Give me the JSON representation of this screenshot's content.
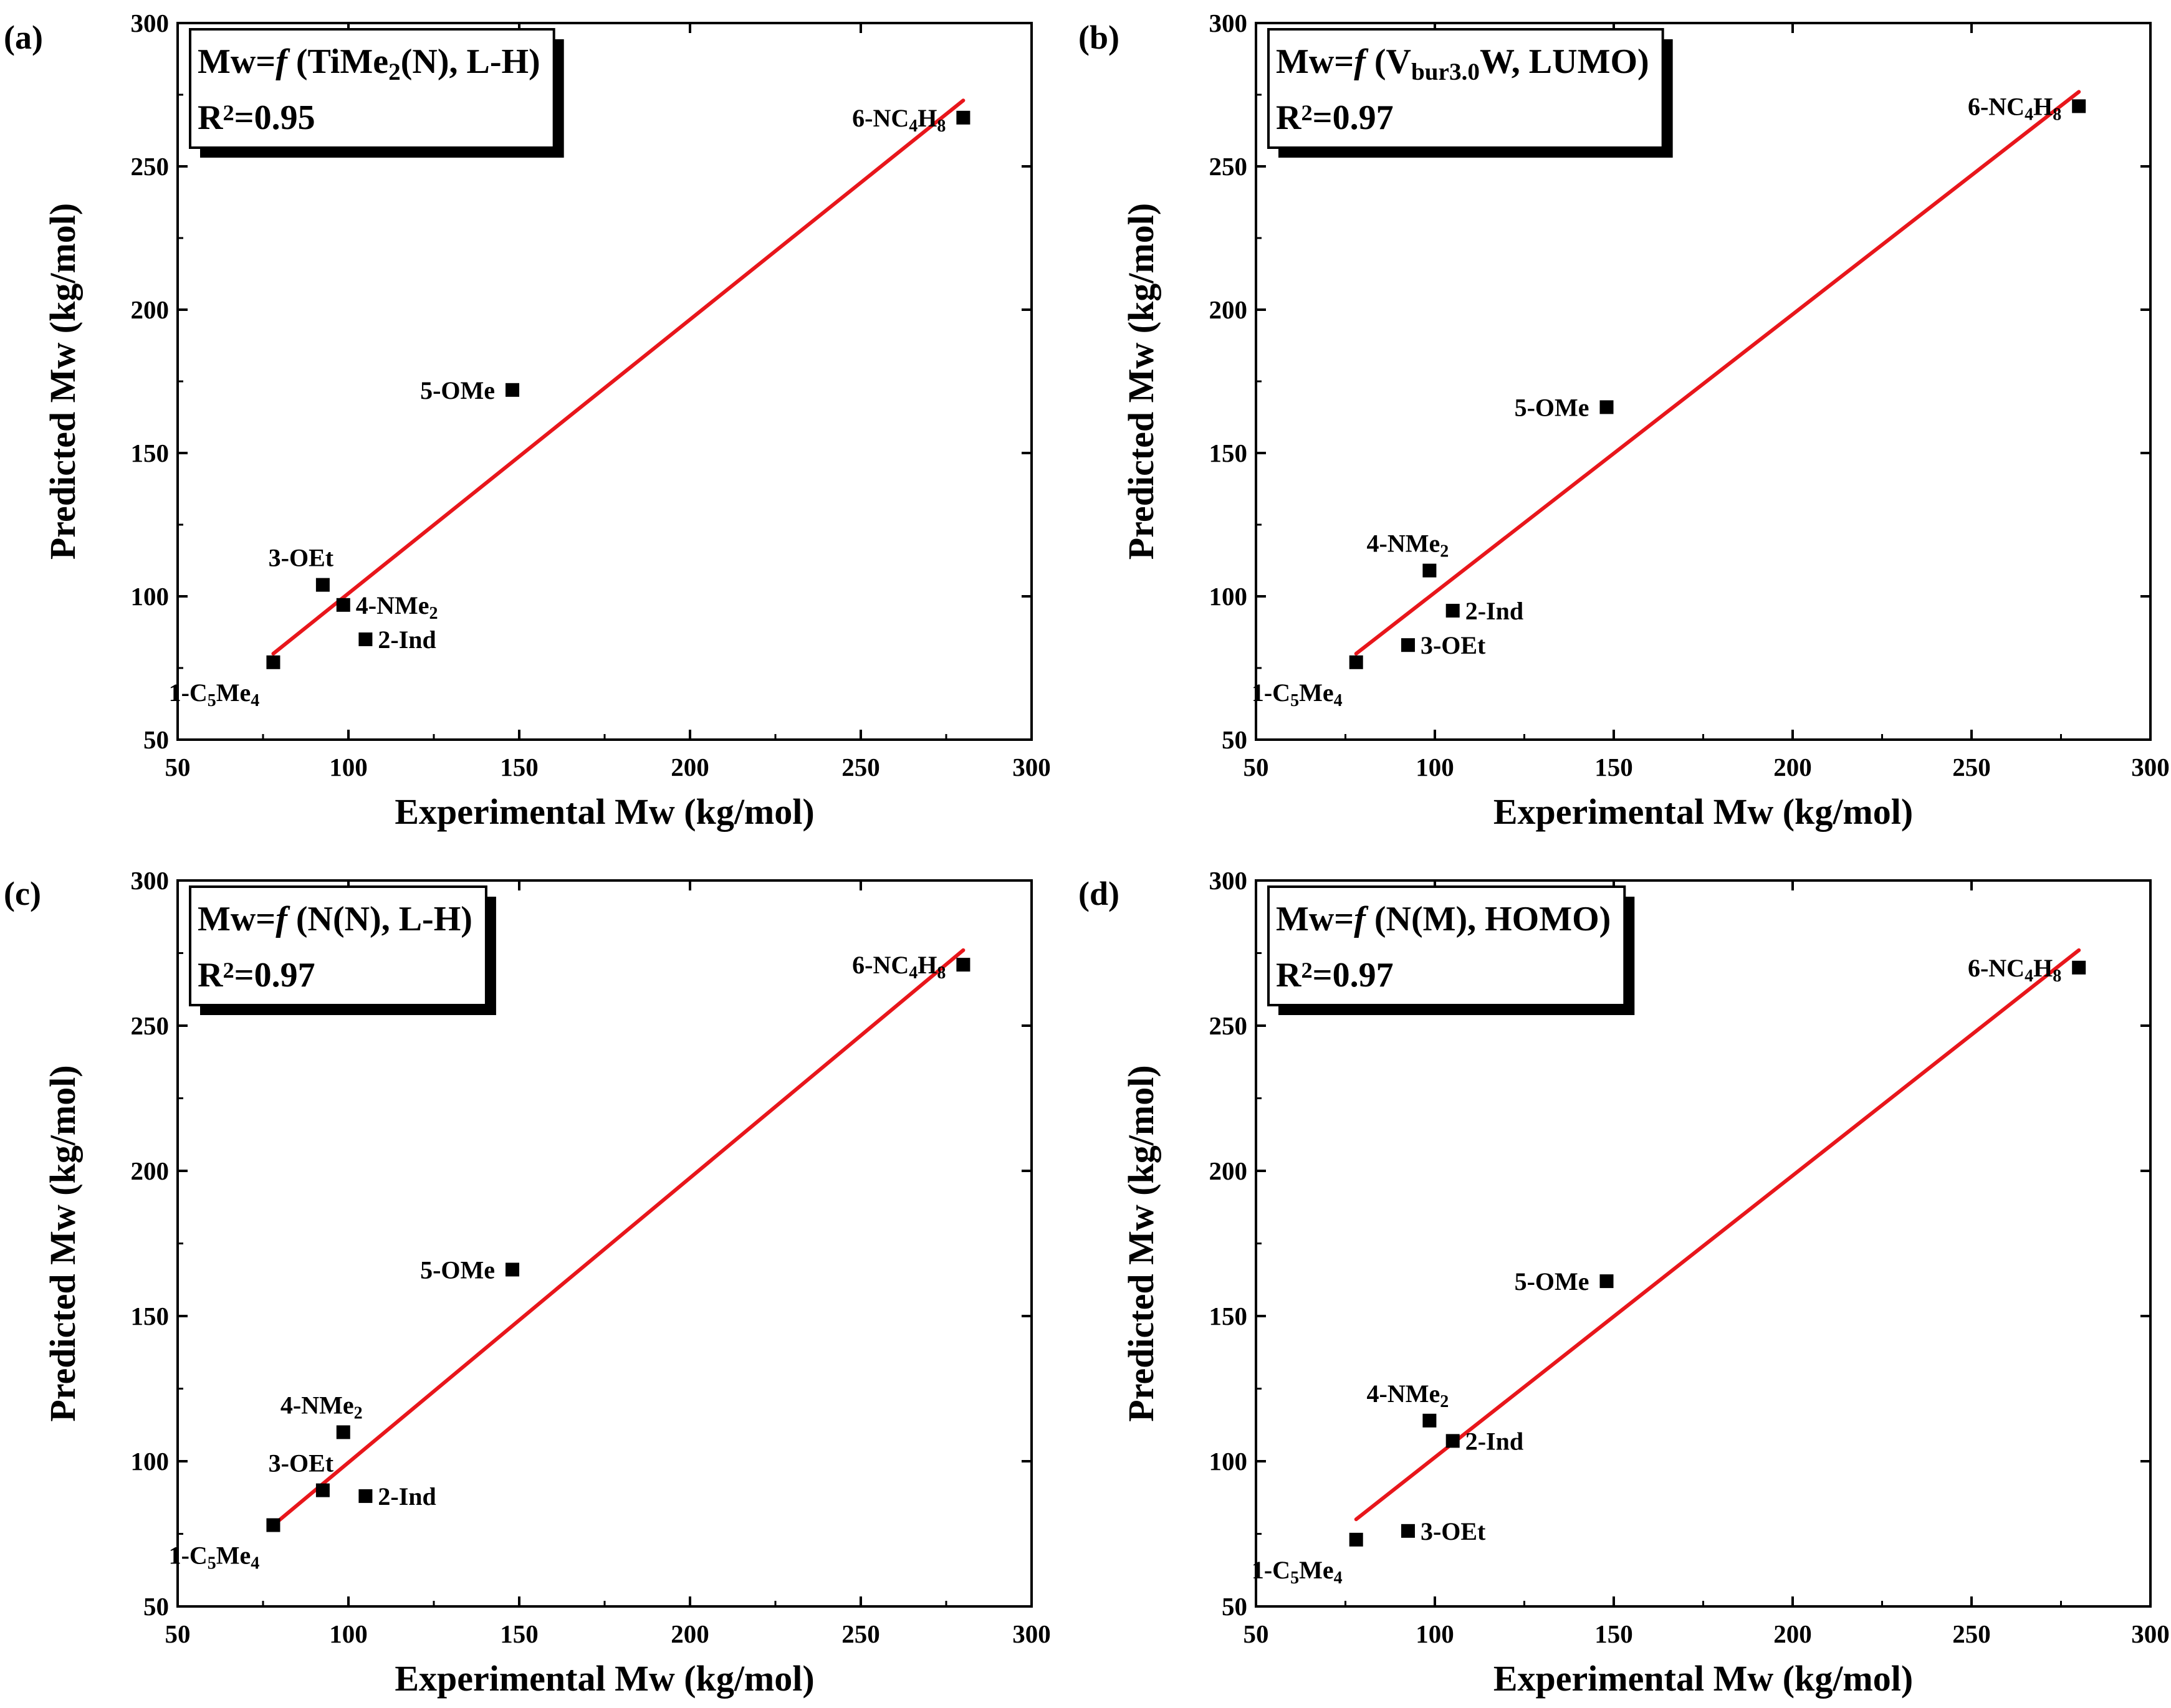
{
  "chart_data": [
    {
      "panel": "(a)",
      "type": "scatter",
      "formula": {
        "prefix": "Mw=",
        "func": "f",
        "args": [
          {
            "t": " (TiMe"
          },
          {
            "t": "2",
            "sub": true
          },
          {
            "t": "(N), L-H)"
          }
        ]
      },
      "r2": {
        "base": "R",
        "sup": "2",
        "value": "=0.95"
      },
      "xlabel": "Experimental Mw (kg/mol)",
      "ylabel": "Predicted Mw (kg/mol)",
      "xlim": [
        50,
        300
      ],
      "ylim": [
        50,
        300
      ],
      "xticks": [
        50,
        100,
        150,
        200,
        250,
        300
      ],
      "yticks": [
        50,
        100,
        150,
        200,
        250,
        300
      ],
      "fit_line": {
        "x": [
          78,
          280
        ],
        "y": [
          80,
          273
        ],
        "color": "#e8161b"
      },
      "points": [
        {
          "x": 78,
          "y": 77,
          "label": [
            {
              "t": "1-C"
            },
            {
              "t": "5",
              "sub": true
            },
            {
              "t": "Me"
            },
            {
              "t": "4",
              "sub": true
            }
          ],
          "pos": "below-left"
        },
        {
          "x": 92.5,
          "y": 104,
          "label": [
            {
              "t": "3-OEt"
            }
          ],
          "pos": "above-left"
        },
        {
          "x": 98.5,
          "y": 97,
          "label": [
            {
              "t": "4-NMe"
            },
            {
              "t": "2",
              "sub": true
            }
          ],
          "pos": "right"
        },
        {
          "x": 105,
          "y": 85,
          "label": [
            {
              "t": "2-Ind"
            }
          ],
          "pos": "right"
        },
        {
          "x": 148,
          "y": 172,
          "label": [
            {
              "t": "5-OMe"
            }
          ],
          "pos": "left"
        },
        {
          "x": 280,
          "y": 267,
          "label": [
            {
              "t": "6-NC"
            },
            {
              "t": "4",
              "sub": true
            },
            {
              "t": "H"
            },
            {
              "t": "8",
              "sub": true
            }
          ],
          "pos": "left"
        }
      ]
    },
    {
      "panel": "(b)",
      "type": "scatter",
      "formula": {
        "prefix": "Mw=",
        "func": "f",
        "args": [
          {
            "t": " (V"
          },
          {
            "t": "bur3.0",
            "sub": true
          },
          {
            "t": "W, LUMO)"
          }
        ]
      },
      "r2": {
        "base": "R",
        "sup": "2",
        "value": "=0.97"
      },
      "xlabel": "Experimental Mw (kg/mol)",
      "ylabel": "Predicted Mw (kg/mol)",
      "xlim": [
        50,
        300
      ],
      "ylim": [
        50,
        300
      ],
      "xticks": [
        50,
        100,
        150,
        200,
        250,
        300
      ],
      "yticks": [
        50,
        100,
        150,
        200,
        250,
        300
      ],
      "fit_line": {
        "x": [
          78,
          280
        ],
        "y": [
          80,
          276
        ],
        "color": "#e8161b"
      },
      "points": [
        {
          "x": 78,
          "y": 77,
          "label": [
            {
              "t": "1-C"
            },
            {
              "t": "5",
              "sub": true
            },
            {
              "t": "Me"
            },
            {
              "t": "4",
              "sub": true
            }
          ],
          "pos": "below-left"
        },
        {
          "x": 92.5,
          "y": 83,
          "label": [
            {
              "t": "3-OEt"
            }
          ],
          "pos": "right"
        },
        {
          "x": 98.5,
          "y": 109,
          "label": [
            {
              "t": "4-NMe"
            },
            {
              "t": "2",
              "sub": true
            }
          ],
          "pos": "above-left"
        },
        {
          "x": 105,
          "y": 95,
          "label": [
            {
              "t": "2-Ind"
            }
          ],
          "pos": "right"
        },
        {
          "x": 148,
          "y": 166,
          "label": [
            {
              "t": "5-OMe"
            }
          ],
          "pos": "left"
        },
        {
          "x": 280,
          "y": 271,
          "label": [
            {
              "t": "6-NC"
            },
            {
              "t": "4",
              "sub": true
            },
            {
              "t": "H"
            },
            {
              "t": "8",
              "sub": true
            }
          ],
          "pos": "left"
        }
      ]
    },
    {
      "panel": "(c)",
      "type": "scatter",
      "formula": {
        "prefix": "Mw=",
        "func": "f",
        "args": [
          {
            "t": " (N(N), L-H)"
          }
        ]
      },
      "r2": {
        "base": "R",
        "sup": "2",
        "value": "=0.97"
      },
      "xlabel": "Experimental Mw (kg/mol)",
      "ylabel": "Predicted Mw (kg/mol)",
      "xlim": [
        50,
        300
      ],
      "ylim": [
        50,
        300
      ],
      "xticks": [
        50,
        100,
        150,
        200,
        250,
        300
      ],
      "yticks": [
        50,
        100,
        150,
        200,
        250,
        300
      ],
      "fit_line": {
        "x": [
          78,
          280
        ],
        "y": [
          78,
          276
        ],
        "color": "#e8161b"
      },
      "points": [
        {
          "x": 78,
          "y": 78,
          "label": [
            {
              "t": "1-C"
            },
            {
              "t": "5",
              "sub": true
            },
            {
              "t": "Me"
            },
            {
              "t": "4",
              "sub": true
            }
          ],
          "pos": "below-left"
        },
        {
          "x": 92.5,
          "y": 90,
          "label": [
            {
              "t": "3-OEt"
            }
          ],
          "pos": "above-left"
        },
        {
          "x": 98.5,
          "y": 110,
          "label": [
            {
              "t": "4-NMe"
            },
            {
              "t": "2",
              "sub": true
            }
          ],
          "pos": "above-left"
        },
        {
          "x": 105,
          "y": 88,
          "label": [
            {
              "t": "2-Ind"
            }
          ],
          "pos": "right"
        },
        {
          "x": 148,
          "y": 166,
          "label": [
            {
              "t": "5-OMe"
            }
          ],
          "pos": "left"
        },
        {
          "x": 280,
          "y": 271,
          "label": [
            {
              "t": "6-NC"
            },
            {
              "t": "4",
              "sub": true
            },
            {
              "t": "H"
            },
            {
              "t": "8",
              "sub": true
            }
          ],
          "pos": "left"
        }
      ]
    },
    {
      "panel": "(d)",
      "type": "scatter",
      "formula": {
        "prefix": "Mw=",
        "func": "f",
        "args": [
          {
            "t": " (N(M), HOMO)"
          }
        ]
      },
      "r2": {
        "base": "R",
        "sup": "2",
        "value": "=0.97"
      },
      "xlabel": "Experimental Mw (kg/mol)",
      "ylabel": "Predicted Mw (kg/mol)",
      "xlim": [
        50,
        300
      ],
      "ylim": [
        50,
        300
      ],
      "xticks": [
        50,
        100,
        150,
        200,
        250,
        300
      ],
      "yticks": [
        50,
        100,
        150,
        200,
        250,
        300
      ],
      "fit_line": {
        "x": [
          78,
          280
        ],
        "y": [
          80,
          276
        ],
        "color": "#e8161b"
      },
      "points": [
        {
          "x": 78,
          "y": 73,
          "label": [
            {
              "t": "1-C"
            },
            {
              "t": "5",
              "sub": true
            },
            {
              "t": "Me"
            },
            {
              "t": "4",
              "sub": true
            }
          ],
          "pos": "below-left"
        },
        {
          "x": 92.5,
          "y": 76,
          "label": [
            {
              "t": "3-OEt"
            }
          ],
          "pos": "right"
        },
        {
          "x": 98.5,
          "y": 114,
          "label": [
            {
              "t": "4-NMe"
            },
            {
              "t": "2",
              "sub": true
            }
          ],
          "pos": "above-left"
        },
        {
          "x": 105,
          "y": 107,
          "label": [
            {
              "t": "2-Ind"
            }
          ],
          "pos": "right"
        },
        {
          "x": 148,
          "y": 162,
          "label": [
            {
              "t": "5-OMe"
            }
          ],
          "pos": "left"
        },
        {
          "x": 280,
          "y": 270,
          "label": [
            {
              "t": "6-NC"
            },
            {
              "t": "4",
              "sub": true
            },
            {
              "t": "H"
            },
            {
              "t": "8",
              "sub": true
            }
          ],
          "pos": "left"
        }
      ]
    }
  ]
}
